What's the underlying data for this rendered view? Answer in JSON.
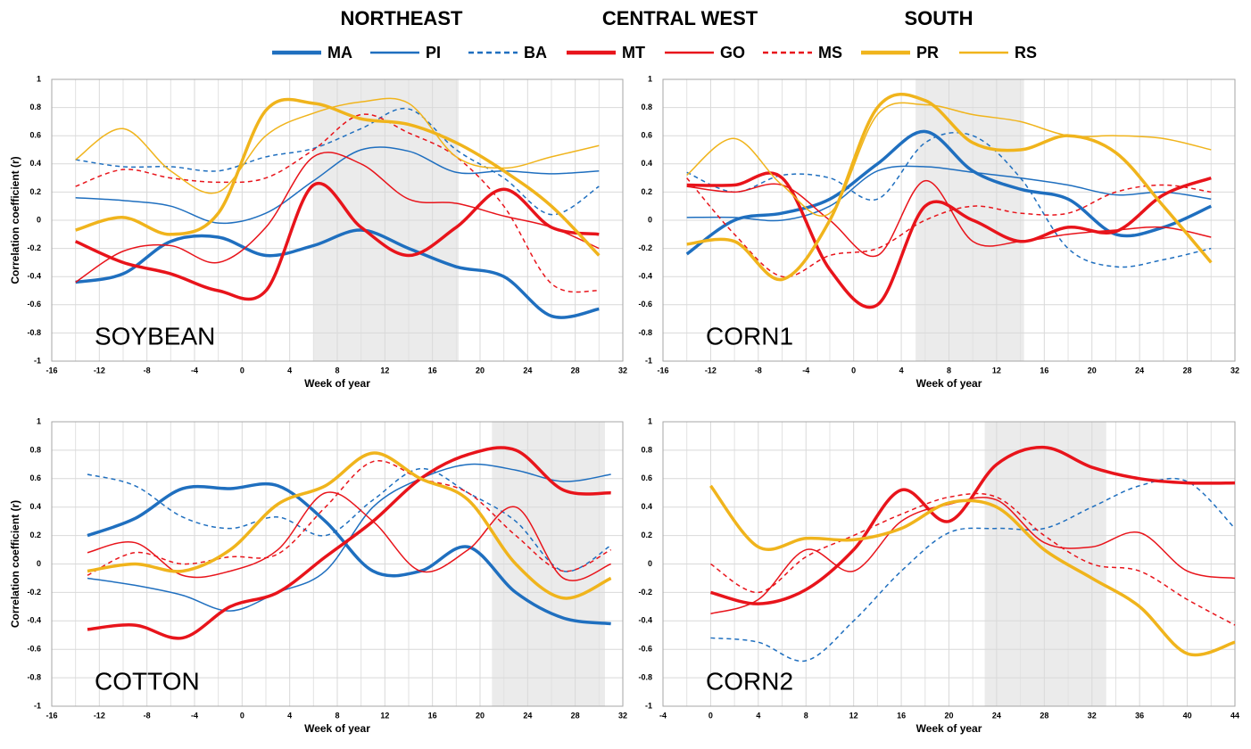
{
  "header": {
    "regions": [
      "NORTHEAST",
      "CENTRAL WEST",
      "SOUTH"
    ]
  },
  "legend": [
    {
      "name": "MA",
      "color": "#1f6fbf",
      "width": 3.5,
      "dash": false
    },
    {
      "name": "PI",
      "color": "#1f6fbf",
      "width": 1.5,
      "dash": false
    },
    {
      "name": "BA",
      "color": "#1f6fbf",
      "width": 1.5,
      "dash": true
    },
    {
      "name": "MT",
      "color": "#e8141b",
      "width": 3.5,
      "dash": false
    },
    {
      "name": "GO",
      "color": "#e8141b",
      "width": 1.5,
      "dash": false
    },
    {
      "name": "MS",
      "color": "#e8141b",
      "width": 1.5,
      "dash": true
    },
    {
      "name": "PR",
      "color": "#f0b41c",
      "width": 3.5,
      "dash": false
    },
    {
      "name": "RS",
      "color": "#f0b41c",
      "width": 1.5,
      "dash": false
    }
  ],
  "chart_data": [
    {
      "type": "line",
      "annotation": "SOYBEAN",
      "x_label": "Week of year",
      "y_label": "Correlation coefficient (r)",
      "xlim": [
        -16,
        32
      ],
      "xticks": [
        -16,
        -12,
        -8,
        -4,
        0,
        4,
        8,
        12,
        16,
        20,
        24,
        28,
        32
      ],
      "ylim": [
        -1,
        1
      ],
      "yticks": [
        -1,
        -0.8,
        -0.6,
        -0.4,
        -0.2,
        0,
        0.2,
        0.4,
        0.6,
        0.8,
        1
      ],
      "shade": [
        6,
        18.2
      ],
      "grid": true,
      "x": [
        -14,
        -10,
        -6,
        -2,
        2,
        6,
        10,
        14,
        18,
        22,
        26,
        30
      ],
      "series": [
        {
          "name": "MA",
          "values": [
            -0.44,
            -0.38,
            -0.15,
            -0.12,
            -0.25,
            -0.18,
            -0.07,
            -0.2,
            -0.33,
            -0.4,
            -0.68,
            -0.63
          ]
        },
        {
          "name": "PI",
          "values": [
            0.16,
            0.14,
            0.1,
            -0.02,
            0.05,
            0.28,
            0.5,
            0.49,
            0.34,
            0.35,
            0.33,
            0.35
          ]
        },
        {
          "name": "BA",
          "values": [
            0.43,
            0.38,
            0.38,
            0.35,
            0.45,
            0.51,
            0.65,
            0.79,
            0.5,
            0.3,
            0.04,
            0.24
          ]
        },
        {
          "name": "MT",
          "values": [
            -0.15,
            -0.3,
            -0.38,
            -0.5,
            -0.5,
            0.25,
            -0.05,
            -0.25,
            -0.05,
            0.22,
            -0.05,
            -0.1
          ]
        },
        {
          "name": "GO",
          "values": [
            -0.44,
            -0.22,
            -0.18,
            -0.3,
            -0.05,
            0.45,
            0.4,
            0.15,
            0.12,
            0.03,
            -0.05,
            -0.2
          ]
        },
        {
          "name": "MS",
          "values": [
            0.24,
            0.36,
            0.3,
            0.27,
            0.3,
            0.5,
            0.75,
            0.62,
            0.45,
            0.1,
            -0.45,
            -0.5
          ]
        },
        {
          "name": "PR",
          "values": [
            -0.07,
            0.02,
            -0.1,
            0.05,
            0.78,
            0.83,
            0.72,
            0.68,
            0.55,
            0.35,
            0.1,
            -0.25
          ]
        },
        {
          "name": "RS",
          "values": [
            0.43,
            0.65,
            0.35,
            0.2,
            0.6,
            0.76,
            0.84,
            0.83,
            0.45,
            0.37,
            0.45,
            0.53
          ]
        }
      ]
    },
    {
      "type": "line",
      "annotation": "CORN1",
      "x_label": "Week of year",
      "xlim": [
        -16,
        32
      ],
      "xticks": [
        -16,
        -12,
        -8,
        -4,
        0,
        4,
        8,
        12,
        16,
        20,
        24,
        28,
        32
      ],
      "ylim": [
        -1,
        1
      ],
      "yticks": [
        -1,
        -0.8,
        -0.6,
        -0.4,
        -0.2,
        0,
        0.2,
        0.4,
        0.6,
        0.8,
        1
      ],
      "shade": [
        5.2,
        14.3
      ],
      "grid": true,
      "x": [
        -14,
        -10,
        -6,
        -2,
        2,
        6,
        10,
        14,
        18,
        22,
        26,
        30
      ],
      "series": [
        {
          "name": "MA",
          "values": [
            -0.24,
            0.0,
            0.05,
            0.15,
            0.4,
            0.63,
            0.35,
            0.22,
            0.15,
            -0.1,
            -0.05,
            0.1
          ]
        },
        {
          "name": "PI",
          "values": [
            0.02,
            0.02,
            0.0,
            0.1,
            0.35,
            0.38,
            0.34,
            0.3,
            0.25,
            0.18,
            0.2,
            0.15
          ]
        },
        {
          "name": "BA",
          "values": [
            0.34,
            0.2,
            0.32,
            0.3,
            0.15,
            0.55,
            0.6,
            0.3,
            -0.2,
            -0.33,
            -0.28,
            -0.2
          ]
        },
        {
          "name": "MT",
          "values": [
            0.25,
            0.25,
            0.3,
            -0.35,
            -0.6,
            0.1,
            0.0,
            -0.15,
            -0.05,
            -0.08,
            0.18,
            0.3
          ]
        },
        {
          "name": "GO",
          "values": [
            0.24,
            0.2,
            0.25,
            0.0,
            -0.25,
            0.28,
            -0.15,
            -0.15,
            -0.1,
            -0.07,
            -0.05,
            -0.12
          ]
        },
        {
          "name": "MS",
          "values": [
            0.3,
            -0.1,
            -0.4,
            -0.25,
            -0.2,
            0.0,
            0.1,
            0.05,
            0.05,
            0.2,
            0.25,
            0.2
          ]
        },
        {
          "name": "PR",
          "values": [
            -0.17,
            -0.15,
            -0.42,
            0.0,
            0.8,
            0.85,
            0.55,
            0.5,
            0.6,
            0.48,
            0.1,
            -0.3
          ]
        },
        {
          "name": "RS",
          "values": [
            0.32,
            0.58,
            0.25,
            0.05,
            0.75,
            0.82,
            0.75,
            0.7,
            0.6,
            0.6,
            0.58,
            0.5
          ]
        }
      ]
    },
    {
      "type": "line",
      "annotation": "COTTON",
      "x_label": "Week of year",
      "y_label": "Correlation coefficient (r)",
      "xlim": [
        -16,
        32
      ],
      "xticks": [
        -16,
        -12,
        -8,
        -4,
        0,
        4,
        8,
        12,
        16,
        20,
        24,
        28,
        32
      ],
      "ylim": [
        -1,
        1
      ],
      "yticks": [
        -1,
        -0.8,
        -0.6,
        -0.4,
        -0.2,
        0,
        0.2,
        0.4,
        0.6,
        0.8,
        1
      ],
      "shade": [
        21,
        30.5
      ],
      "grid": true,
      "x": [
        -13,
        -9,
        -5,
        -1,
        3,
        7,
        11,
        15,
        19,
        23,
        27,
        31
      ],
      "series": [
        {
          "name": "MA",
          "values": [
            0.2,
            0.32,
            0.53,
            0.53,
            0.55,
            0.3,
            -0.05,
            -0.05,
            0.12,
            -0.2,
            -0.38,
            -0.42
          ]
        },
        {
          "name": "PI",
          "values": [
            -0.1,
            -0.15,
            -0.22,
            -0.33,
            -0.2,
            -0.05,
            0.4,
            0.6,
            0.7,
            0.66,
            0.58,
            0.63
          ]
        },
        {
          "name": "BA",
          "values": [
            0.63,
            0.55,
            0.33,
            0.25,
            0.33,
            0.2,
            0.45,
            0.67,
            0.5,
            0.3,
            -0.05,
            0.13
          ]
        },
        {
          "name": "MT",
          "values": [
            -0.46,
            -0.43,
            -0.52,
            -0.3,
            -0.2,
            0.05,
            0.3,
            0.6,
            0.77,
            0.8,
            0.52,
            0.5
          ]
        },
        {
          "name": "GO",
          "values": [
            0.08,
            0.15,
            -0.08,
            -0.05,
            0.1,
            0.5,
            0.3,
            -0.05,
            0.1,
            0.4,
            -0.1,
            0.0
          ]
        },
        {
          "name": "MS",
          "values": [
            -0.08,
            0.08,
            0.0,
            0.05,
            0.07,
            0.4,
            0.72,
            0.6,
            0.5,
            0.2,
            -0.05,
            0.1
          ]
        },
        {
          "name": "PR",
          "values": [
            -0.05,
            0.0,
            -0.05,
            0.1,
            0.42,
            0.55,
            0.78,
            0.6,
            0.45,
            0.0,
            -0.24,
            -0.1
          ]
        }
      ]
    },
    {
      "type": "line",
      "annotation": "CORN2",
      "x_label": "Week of year",
      "xlim": [
        -4,
        44
      ],
      "xticks": [
        -4,
        0,
        4,
        8,
        12,
        16,
        20,
        24,
        28,
        32,
        36,
        40,
        44
      ],
      "ylim": [
        -1,
        1
      ],
      "yticks": [
        -1,
        -0.8,
        -0.6,
        -0.4,
        -0.2,
        0,
        0.2,
        0.4,
        0.6,
        0.8,
        1
      ],
      "shade": [
        23,
        33.2
      ],
      "grid": true,
      "x": [
        0,
        4,
        8,
        12,
        16,
        20,
        24,
        28,
        32,
        36,
        40,
        44
      ],
      "series": [
        {
          "name": "BA",
          "values": [
            -0.52,
            -0.55,
            -0.68,
            -0.4,
            -0.05,
            0.22,
            0.25,
            0.25,
            0.4,
            0.55,
            0.58,
            0.25
          ]
        },
        {
          "name": "MT",
          "values": [
            -0.2,
            -0.28,
            -0.18,
            0.1,
            0.52,
            0.3,
            0.7,
            0.82,
            0.68,
            0.6,
            0.57,
            0.57
          ]
        },
        {
          "name": "GO",
          "values": [
            -0.35,
            -0.25,
            0.1,
            -0.05,
            0.3,
            0.42,
            0.45,
            0.15,
            0.12,
            0.22,
            -0.05,
            -0.1
          ]
        },
        {
          "name": "MS",
          "values": [
            0.0,
            -0.2,
            0.05,
            0.2,
            0.35,
            0.47,
            0.47,
            0.2,
            0.0,
            -0.05,
            -0.25,
            -0.43
          ]
        },
        {
          "name": "PR",
          "values": [
            0.55,
            0.12,
            0.18,
            0.17,
            0.25,
            0.43,
            0.4,
            0.1,
            -0.1,
            -0.3,
            -0.63,
            -0.55
          ]
        }
      ]
    }
  ]
}
